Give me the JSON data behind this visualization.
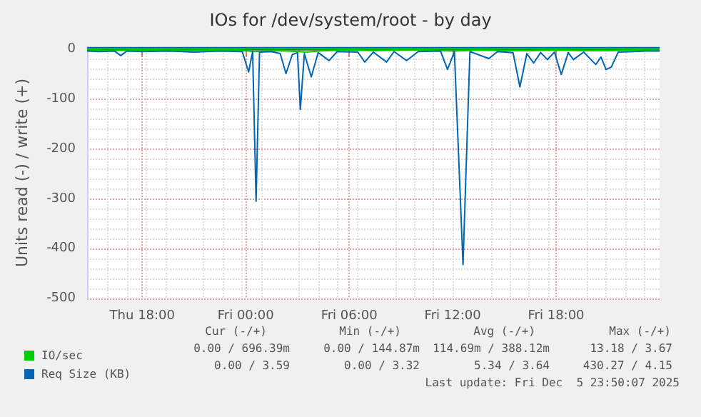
{
  "chart_data": {
    "type": "line",
    "title": "IOs for /dev/system/root - by day",
    "ylabel": "Units read (-) / write (+)",
    "xlim": [
      "2025-12-04T14:48",
      "2025-12-06T00:00"
    ],
    "ylim": [
      -500,
      5
    ],
    "xticks": [
      {
        "value": "2025-12-04T18:00",
        "label": "Thu 18:00"
      },
      {
        "value": "2025-12-05T00:00",
        "label": "Fri 00:00"
      },
      {
        "value": "2025-12-05T06:00",
        "label": "Fri 06:00"
      },
      {
        "value": "2025-12-05T12:00",
        "label": "Fri 12:00"
      },
      {
        "value": "2025-12-05T18:00",
        "label": "Fri 18:00"
      }
    ],
    "yticks": [
      -500,
      -400,
      -300,
      -200,
      -100,
      0
    ],
    "grid": true,
    "legend": "bottom left",
    "line_style": "solid",
    "marker": "none",
    "series": [
      {
        "name": "IO/sec",
        "color": "#00cc00",
        "x": [
          "2025-12-04T14:48",
          "2025-12-04T16:00",
          "2025-12-04T17:30",
          "2025-12-04T19:00",
          "2025-12-04T20:30",
          "2025-12-04T22:00",
          "2025-12-04T23:30",
          "2025-12-05T00:30",
          "2025-12-05T01:30",
          "2025-12-05T02:30",
          "2025-12-05T03:30",
          "2025-12-05T04:30",
          "2025-12-05T06:00",
          "2025-12-05T07:30",
          "2025-12-05T09:00",
          "2025-12-05T10:30",
          "2025-12-05T12:00",
          "2025-12-05T13:30",
          "2025-12-05T15:00",
          "2025-12-05T16:30",
          "2025-12-05T18:00",
          "2025-12-05T19:30",
          "2025-12-05T21:00",
          "2025-12-05T22:30",
          "2025-12-06T00:00"
        ],
        "values": [
          -1,
          -2,
          -1,
          -1,
          -2,
          -1,
          -1,
          -4,
          -2,
          -3,
          -5,
          -2,
          -1,
          -2,
          -1,
          -1,
          -3,
          -1,
          -2,
          -2,
          -1,
          -2,
          -2,
          -1,
          -1
        ]
      },
      {
        "name": "Req Size (KB)",
        "color": "#0066b3",
        "x": [
          "2025-12-04T14:48",
          "2025-12-04T15:30",
          "2025-12-04T16:24",
          "2025-12-04T16:45",
          "2025-12-04T17:06",
          "2025-12-04T18:00",
          "2025-12-04T19:30",
          "2025-12-04T21:00",
          "2025-12-04T22:30",
          "2025-12-04T23:48",
          "2025-12-05T00:10",
          "2025-12-05T00:24",
          "2025-12-05T00:36",
          "2025-12-05T00:48",
          "2025-12-05T01:30",
          "2025-12-05T02:00",
          "2025-12-05T02:20",
          "2025-12-05T02:42",
          "2025-12-05T03:00",
          "2025-12-05T03:10",
          "2025-12-05T03:24",
          "2025-12-05T03:48",
          "2025-12-05T04:12",
          "2025-12-05T04:50",
          "2025-12-05T05:18",
          "2025-12-05T06:30",
          "2025-12-05T06:54",
          "2025-12-05T07:24",
          "2025-12-05T08:10",
          "2025-12-05T08:36",
          "2025-12-05T09:20",
          "2025-12-05T10:00",
          "2025-12-05T11:18",
          "2025-12-05T11:42",
          "2025-12-05T12:06",
          "2025-12-05T12:36",
          "2025-12-05T13:00",
          "2025-12-05T14:06",
          "2025-12-05T14:36",
          "2025-12-05T15:30",
          "2025-12-05T15:54",
          "2025-12-05T16:18",
          "2025-12-05T16:42",
          "2025-12-05T17:06",
          "2025-12-05T17:30",
          "2025-12-05T17:54",
          "2025-12-05T18:18",
          "2025-12-05T18:42",
          "2025-12-05T19:00",
          "2025-12-05T19:36",
          "2025-12-05T20:18",
          "2025-12-05T20:36",
          "2025-12-05T20:54",
          "2025-12-05T21:12",
          "2025-12-05T21:36",
          "2025-12-05T22:30",
          "2025-12-05T23:12",
          "2025-12-06T00:00"
        ],
        "values": [
          -3,
          -4,
          -3,
          -12,
          -3,
          -4,
          -3,
          -5,
          -3,
          -4,
          -45,
          -4,
          -305,
          -5,
          -4,
          -8,
          -48,
          -10,
          -6,
          -120,
          -8,
          -55,
          -6,
          -22,
          -4,
          -5,
          -25,
          -5,
          -25,
          -4,
          -22,
          -4,
          -3,
          -40,
          -4,
          -432,
          -4,
          -18,
          -4,
          -6,
          -75,
          -8,
          -27,
          -6,
          -20,
          -5,
          -50,
          -6,
          -20,
          -5,
          -30,
          -15,
          -40,
          -35,
          -5,
          -4,
          -3,
          -3
        ]
      },
      {
        "color": "#00cc00",
        "x": [
          "2025-12-04T14:48",
          "2025-12-04T20:00",
          "2025-12-05T02:00",
          "2025-12-05T08:00",
          "2025-12-05T14:00",
          "2025-12-05T20:00",
          "2025-12-06T00:00"
        ],
        "values": [
          1,
          1,
          1,
          1,
          1,
          1,
          1
        ]
      },
      {
        "color": "#0066b3",
        "x": [
          "2025-12-04T14:48",
          "2025-12-04T20:00",
          "2025-12-05T02:00",
          "2025-12-05T08:00",
          "2025-12-05T14:00",
          "2025-12-05T20:00",
          "2025-12-06T00:00"
        ],
        "values": [
          4,
          4,
          4,
          4,
          4,
          4,
          4
        ]
      }
    ],
    "annotations": [
      "Cur (-/+)",
      "Min (-/+)",
      "Avg (-/+)",
      "Max (-/+)",
      "0.00 / 696.39m",
      "0.00 / 144.87m",
      "114.69m / 388.12m",
      "13.18 / 3.67",
      "0.00 / 3.59",
      "0.00 / 3.32",
      "5.34 / 3.64",
      "430.27 / 4.15",
      "Last update: Fri Dec  5 23:50:07 2025"
    ]
  }
}
